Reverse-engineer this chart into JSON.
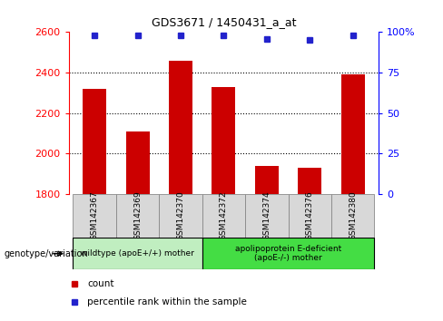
{
  "title": "GDS3671 / 1450431_a_at",
  "samples": [
    "GSM142367",
    "GSM142369",
    "GSM142370",
    "GSM142372",
    "GSM142374",
    "GSM142376",
    "GSM142380"
  ],
  "bar_values": [
    2320,
    2110,
    2460,
    2330,
    1940,
    1930,
    2390
  ],
  "percentile_values": [
    98,
    98,
    98,
    98,
    96,
    95,
    98
  ],
  "bar_color": "#cc0000",
  "dot_color": "#2222cc",
  "ylim_left": [
    1800,
    2600
  ],
  "ylim_right": [
    0,
    100
  ],
  "yticks_left": [
    1800,
    2000,
    2200,
    2400,
    2600
  ],
  "yticks_right": [
    0,
    25,
    50,
    75,
    100
  ],
  "group1_label": "wildtype (apoE+/+) mother",
  "group2_label": "apolipoprotein E-deficient\n(apoE-/-) mother",
  "group1_indices": [
    0,
    1,
    2
  ],
  "group2_indices": [
    3,
    4,
    5,
    6
  ],
  "group1_color": "#c0eec0",
  "group2_color": "#44dd44",
  "genotype_label": "genotype/variation",
  "legend_count_label": "count",
  "legend_percentile_label": "percentile rank within the sample",
  "bar_width": 0.55,
  "tick_label_bg": "#d8d8d8",
  "grid_yticks": [
    2000,
    2200,
    2400
  ]
}
